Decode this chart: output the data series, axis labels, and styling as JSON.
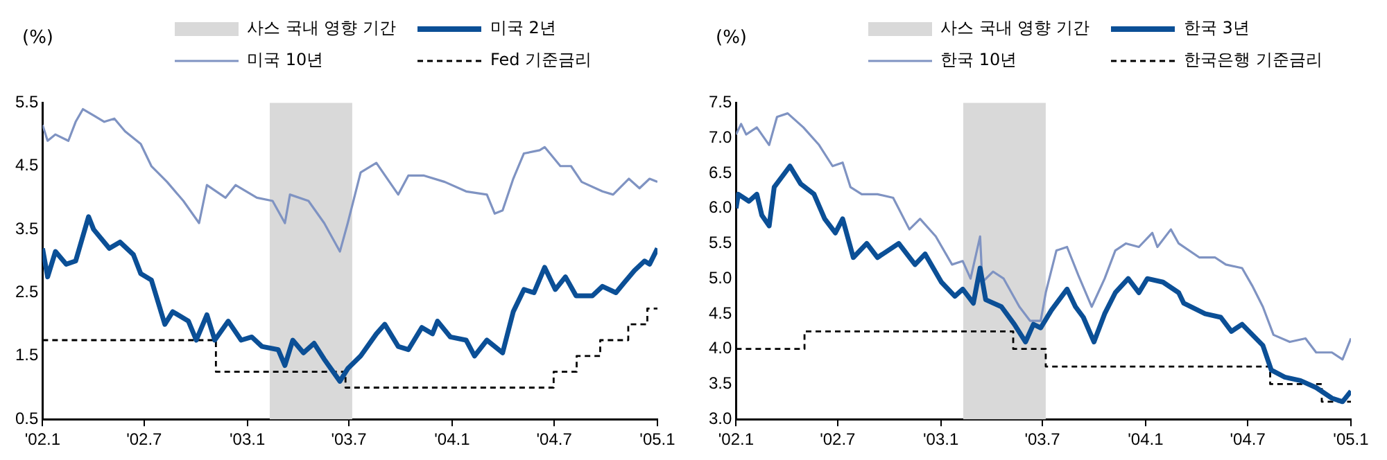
{
  "chart_data": [
    {
      "type": "line",
      "ylabel": "(%)",
      "legend": "top",
      "grid": false,
      "xlim": [
        "2002-01-01",
        "2005-01-01"
      ],
      "xticks": [
        {
          "value": "2002-01",
          "label": "'02.1"
        },
        {
          "value": "2002-07",
          "label": "'02.7"
        },
        {
          "value": "2003-01",
          "label": "'03.1"
        },
        {
          "value": "2003-07",
          "label": "'03.7"
        },
        {
          "value": "2004-01",
          "label": "'04.1"
        },
        {
          "value": "2004-07",
          "label": "'04.7"
        },
        {
          "value": "2005-01",
          "label": "'05.1"
        }
      ],
      "ylim": [
        0.5,
        5.5
      ],
      "yticks": [
        0.5,
        1.5,
        2.5,
        3.5,
        4.5,
        5.5
      ],
      "bands": [
        {
          "axis": "x",
          "from": "2003-02-10",
          "to": "2003-07-07",
          "label": "사스 국내 영향 기간",
          "color": "#d9d9d9"
        }
      ],
      "series": [
        {
          "name": "미국 2년",
          "color": "#0b4f96",
          "line_style": "solid",
          "x": [
            "2002-01-01",
            "2002-01-10",
            "2002-01-24",
            "2002-02-12",
            "2002-03-01",
            "2002-03-24",
            "2002-04-02",
            "2002-04-30",
            "2002-05-19",
            "2002-06-12",
            "2002-06-25",
            "2002-07-14",
            "2002-08-07",
            "2002-08-21",
            "2002-09-18",
            "2002-10-02",
            "2002-10-21",
            "2002-11-04",
            "2002-11-28",
            "2002-12-21",
            "2003-01-09",
            "2003-01-27",
            "2003-02-25",
            "2003-03-09",
            "2003-03-23",
            "2003-04-11",
            "2003-04-30",
            "2003-05-18",
            "2003-06-15",
            "2003-06-29",
            "2003-07-22",
            "2003-08-19",
            "2003-09-03",
            "2003-09-27",
            "2003-10-15",
            "2003-11-08",
            "2003-11-27",
            "2003-12-06",
            "2003-12-29",
            "2004-01-26",
            "2004-02-10",
            "2004-03-03",
            "2004-03-31",
            "2004-04-19",
            "2004-05-08",
            "2004-05-26",
            "2004-06-14",
            "2004-07-03",
            "2004-07-21",
            "2004-08-09",
            "2004-09-07",
            "2004-09-25",
            "2004-10-19",
            "2004-11-02",
            "2004-11-21",
            "2004-12-09",
            "2004-12-18",
            "2005-01-01"
          ],
          "values": [
            3.2,
            2.75,
            3.15,
            2.95,
            3.0,
            3.7,
            3.5,
            3.2,
            3.3,
            3.1,
            2.8,
            2.7,
            2.0,
            2.2,
            2.05,
            1.75,
            2.15,
            1.75,
            2.05,
            1.75,
            1.8,
            1.65,
            1.6,
            1.35,
            1.75,
            1.55,
            1.7,
            1.45,
            1.1,
            1.3,
            1.5,
            1.85,
            2.0,
            1.65,
            1.6,
            1.95,
            1.85,
            2.05,
            1.8,
            1.75,
            1.5,
            1.75,
            1.55,
            2.2,
            2.55,
            2.5,
            2.9,
            2.55,
            2.75,
            2.45,
            2.45,
            2.6,
            2.5,
            2.65,
            2.85,
            3.0,
            2.95,
            3.2
          ]
        },
        {
          "name": "미국 10년",
          "color": "#7f93c2",
          "line_style": "solid",
          "x": [
            "2002-01-01",
            "2002-01-10",
            "2002-01-24",
            "2002-02-16",
            "2002-03-01",
            "2002-03-14",
            "2002-04-02",
            "2002-04-21",
            "2002-05-09",
            "2002-05-28",
            "2002-06-25",
            "2002-07-14",
            "2002-08-11",
            "2002-09-09",
            "2002-10-07",
            "2002-10-21",
            "2002-11-23",
            "2002-12-11",
            "2003-01-18",
            "2003-02-15",
            "2003-03-09",
            "2003-03-18",
            "2003-04-20",
            "2003-05-18",
            "2003-06-15",
            "2003-06-29",
            "2003-07-22",
            "2003-08-19",
            "2003-09-27",
            "2003-10-15",
            "2003-11-12",
            "2003-12-19",
            "2004-01-26",
            "2004-03-03",
            "2004-03-17",
            "2004-03-31",
            "2004-04-19",
            "2004-05-08",
            "2004-06-05",
            "2004-06-14",
            "2004-07-12",
            "2004-07-31",
            "2004-08-19",
            "2004-09-25",
            "2004-10-14",
            "2004-11-11",
            "2004-11-30",
            "2004-12-18",
            "2005-01-01"
          ],
          "values": [
            5.15,
            4.9,
            5.0,
            4.9,
            5.2,
            5.4,
            5.3,
            5.2,
            5.25,
            5.05,
            4.85,
            4.5,
            4.25,
            3.95,
            3.6,
            4.2,
            4.0,
            4.2,
            4.0,
            3.95,
            3.6,
            4.05,
            3.95,
            3.6,
            3.15,
            3.6,
            4.4,
            4.55,
            4.05,
            4.35,
            4.35,
            4.25,
            4.1,
            4.05,
            3.75,
            3.8,
            4.3,
            4.7,
            4.75,
            4.8,
            4.5,
            4.5,
            4.25,
            4.1,
            4.05,
            4.3,
            4.15,
            4.3,
            4.25
          ]
        },
        {
          "name": "Fed 기준금리",
          "type": "step",
          "color": "#000000",
          "line_style": "dashed",
          "x": [
            "2002-01-01",
            "2002-11-06",
            "2003-06-25",
            "2004-06-30",
            "2004-08-10",
            "2004-09-21",
            "2004-11-10",
            "2004-12-14",
            "2005-01-01"
          ],
          "values": [
            1.75,
            1.25,
            1.0,
            1.25,
            1.5,
            1.75,
            2.0,
            2.25,
            2.25
          ]
        }
      ]
    },
    {
      "type": "line",
      "ylabel": "(%)",
      "legend": "top",
      "grid": false,
      "xlim": [
        "2002-01-01",
        "2005-01-01"
      ],
      "xticks": [
        {
          "value": "2002-01",
          "label": "'02.1"
        },
        {
          "value": "2002-07",
          "label": "'02.7"
        },
        {
          "value": "2003-01",
          "label": "'03.1"
        },
        {
          "value": "2003-07",
          "label": "'03.7"
        },
        {
          "value": "2004-01",
          "label": "'04.1"
        },
        {
          "value": "2004-07",
          "label": "'04.7"
        },
        {
          "value": "2005-01",
          "label": "'05.1"
        }
      ],
      "ylim": [
        3.0,
        7.5
      ],
      "yticks": [
        {
          "value": 3,
          "label": "3.0"
        },
        3.5,
        {
          "value": 4,
          "label": "4.0"
        },
        4.5,
        {
          "value": 5,
          "label": "5.0"
        },
        5.5,
        {
          "value": 6,
          "label": "6.0"
        },
        6.5,
        {
          "value": 7,
          "label": "7.0"
        },
        7.5
      ],
      "bands": [
        {
          "axis": "x",
          "from": "2003-02-10",
          "to": "2003-07-07",
          "label": "사스 국내 영향 기간",
          "color": "#d9d9d9"
        }
      ],
      "series": [
        {
          "name": "한국 3년",
          "color": "#0b4f96",
          "line_style": "solid",
          "x": [
            "2002-01-01",
            "2002-01-05",
            "2002-01-24",
            "2002-02-07",
            "2002-02-16",
            "2002-03-01",
            "2002-03-10",
            "2002-03-24",
            "2002-04-07",
            "2002-04-26",
            "2002-05-20",
            "2002-06-08",
            "2002-06-27",
            "2002-07-10",
            "2002-07-29",
            "2002-08-22",
            "2002-09-10",
            "2002-10-18",
            "2002-11-16",
            "2002-12-04",
            "2003-01-02",
            "2003-01-26",
            "2003-02-09",
            "2003-02-28",
            "2003-03-12",
            "2003-03-22",
            "2003-04-19",
            "2003-05-12",
            "2003-06-01",
            "2003-06-15",
            "2003-06-28",
            "2003-07-17",
            "2003-08-14",
            "2003-08-29",
            "2003-09-12",
            "2003-10-01",
            "2003-10-20",
            "2003-11-08",
            "2003-12-01",
            "2003-12-20",
            "2004-01-04",
            "2004-02-01",
            "2004-02-29",
            "2004-03-09",
            "2004-04-16",
            "2004-05-14",
            "2004-06-02",
            "2004-06-21",
            "2004-07-28",
            "2004-08-12",
            "2004-09-05",
            "2004-10-03",
            "2004-10-31",
            "2004-11-28",
            "2004-12-17",
            "2005-01-01"
          ],
          "values": [
            6.0,
            6.2,
            6.1,
            6.2,
            5.9,
            5.75,
            6.3,
            6.45,
            6.6,
            6.35,
            6.2,
            5.85,
            5.65,
            5.85,
            5.3,
            5.5,
            5.3,
            5.5,
            5.2,
            5.35,
            4.95,
            4.75,
            4.85,
            4.65,
            5.15,
            4.7,
            4.6,
            4.35,
            4.1,
            4.35,
            4.3,
            4.55,
            4.85,
            4.6,
            4.45,
            4.1,
            4.5,
            4.8,
            5.0,
            4.8,
            5.0,
            4.95,
            4.8,
            4.65,
            4.5,
            4.45,
            4.25,
            4.35,
            4.05,
            3.7,
            3.6,
            3.55,
            3.45,
            3.3,
            3.25,
            3.4
          ]
        },
        {
          "name": "한국 10년",
          "color": "#7f93c2",
          "line_style": "solid",
          "x": [
            "2002-01-01",
            "2002-01-10",
            "2002-01-19",
            "2002-02-07",
            "2002-03-01",
            "2002-03-15",
            "2002-04-03",
            "2002-05-01",
            "2002-05-29",
            "2002-06-22",
            "2002-07-10",
            "2002-07-24",
            "2002-08-13",
            "2002-09-10",
            "2002-10-08",
            "2002-11-06",
            "2002-11-25",
            "2002-12-23",
            "2003-01-21",
            "2003-02-09",
            "2003-02-23",
            "2003-03-12",
            "2003-03-16",
            "2003-04-04",
            "2003-04-23",
            "2003-05-21",
            "2003-06-09",
            "2003-06-28",
            "2003-07-07",
            "2003-07-26",
            "2003-08-14",
            "2003-09-03",
            "2003-09-27",
            "2003-10-20",
            "2003-11-08",
            "2003-11-27",
            "2003-12-20",
            "2004-01-13",
            "2004-01-22",
            "2004-02-15",
            "2004-02-29",
            "2004-04-06",
            "2004-05-04",
            "2004-05-23",
            "2004-06-21",
            "2004-07-09",
            "2004-07-28",
            "2004-08-16",
            "2004-09-14",
            "2004-10-12",
            "2004-10-31",
            "2004-11-28",
            "2004-12-17",
            "2005-01-01"
          ],
          "values": [
            7.05,
            7.2,
            7.05,
            7.15,
            6.9,
            7.3,
            7.35,
            7.15,
            6.9,
            6.6,
            6.65,
            6.3,
            6.2,
            6.2,
            6.15,
            5.7,
            5.85,
            5.6,
            5.2,
            5.25,
            5.0,
            5.6,
            4.95,
            5.1,
            5.0,
            4.6,
            4.4,
            4.4,
            4.8,
            5.4,
            5.45,
            5.05,
            4.6,
            5.0,
            5.4,
            5.5,
            5.45,
            5.65,
            5.45,
            5.7,
            5.5,
            5.3,
            5.3,
            5.2,
            5.15,
            4.9,
            4.6,
            4.2,
            4.1,
            4.15,
            3.95,
            3.95,
            3.85,
            4.15
          ]
        },
        {
          "name": "한국은행 기준금리",
          "type": "step",
          "color": "#000000",
          "line_style": "dashed",
          "x": [
            "2002-01-01",
            "2002-05-03",
            "2003-05-10",
            "2003-07-07",
            "2004-08-10",
            "2004-11-10",
            "2005-01-01"
          ],
          "values": [
            4.0,
            4.25,
            4.0,
            3.75,
            3.5,
            3.25,
            3.25
          ]
        }
      ]
    }
  ]
}
